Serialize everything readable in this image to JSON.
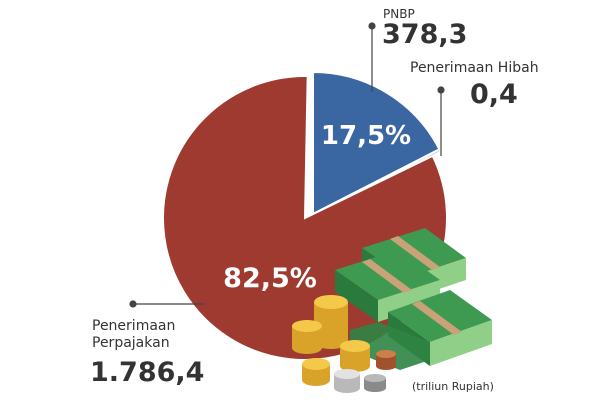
{
  "chart_data": {
    "type": "pie",
    "title": "",
    "unit": "(triliun Rupiah)",
    "series": [
      {
        "name": "PNBP",
        "value": 378.3,
        "value_label": "378,3",
        "percent_label": "17,5%",
        "color": "#3a67a2"
      },
      {
        "name": "Penerimaan Hibah",
        "value": 0.4,
        "value_label": "0,4",
        "percent_label": "",
        "color": "#c9c9c9"
      },
      {
        "name": "Penerimaan Perpajakan",
        "value": 1786.4,
        "value_label": "1.786,4",
        "percent_label": "82,5%",
        "color": "#9e3a30",
        "name_lines": [
          "Penerimaan",
          "Perpajakan"
        ]
      }
    ]
  }
}
